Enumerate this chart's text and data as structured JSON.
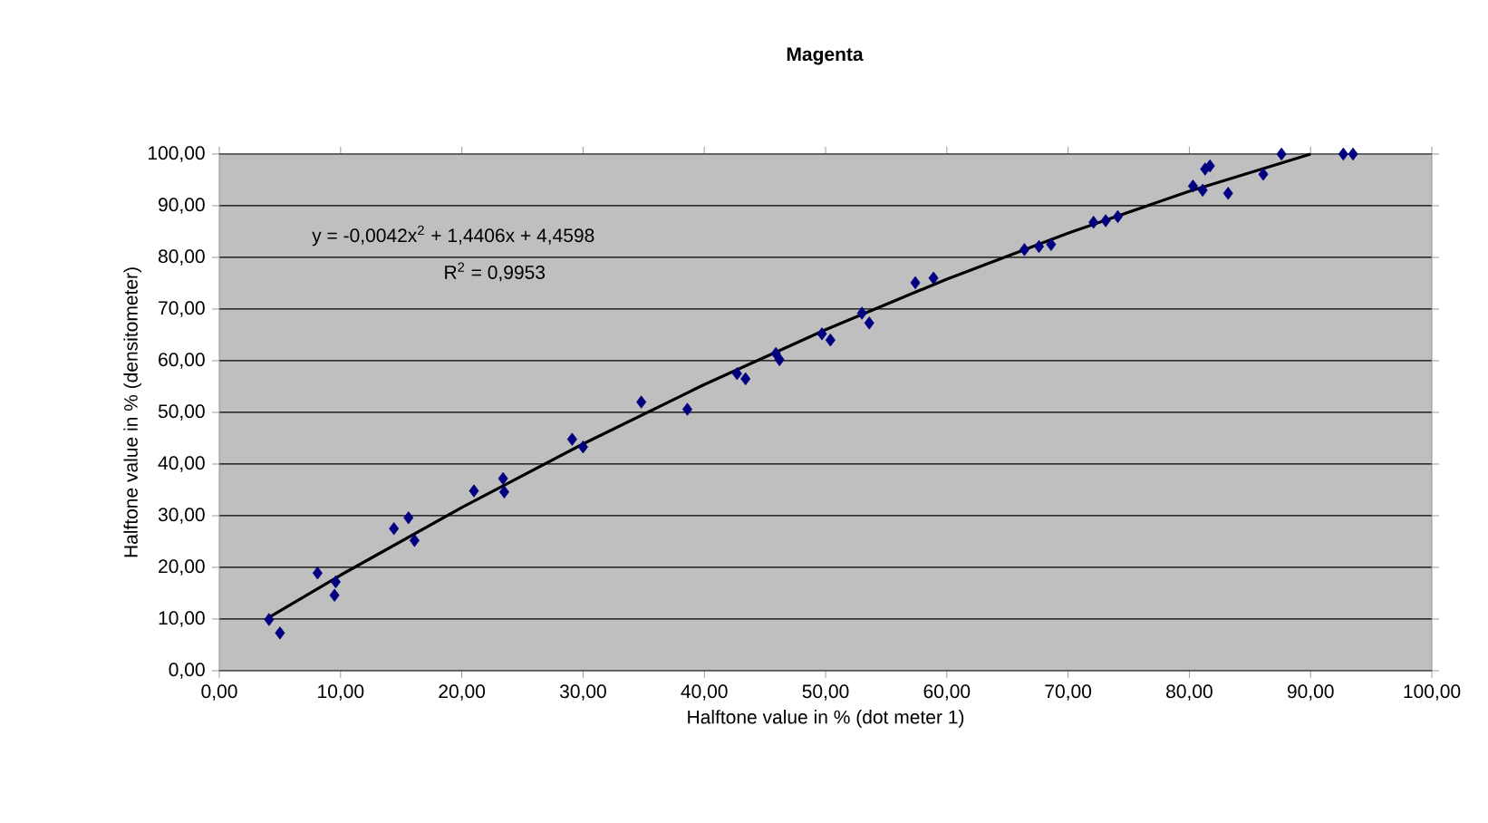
{
  "chart_data": {
    "type": "scatter",
    "title": "Magenta",
    "xlabel": "Halftone value in % (dot meter 1)",
    "ylabel": "Halftone value in % (densitometer)",
    "xlim": [
      0,
      100
    ],
    "ylim": [
      0,
      100
    ],
    "xticks": [
      {
        "value": 0,
        "label": "0,00"
      },
      {
        "value": 10,
        "label": "10,00"
      },
      {
        "value": 20,
        "label": "20,00"
      },
      {
        "value": 30,
        "label": "30,00"
      },
      {
        "value": 40,
        "label": "40,00"
      },
      {
        "value": 50,
        "label": "50,00"
      },
      {
        "value": 60,
        "label": "60,00"
      },
      {
        "value": 70,
        "label": "70,00"
      },
      {
        "value": 80,
        "label": "80,00"
      },
      {
        "value": 90,
        "label": "90,00"
      },
      {
        "value": 100,
        "label": "100,00"
      }
    ],
    "yticks": [
      {
        "value": 0,
        "label": "0,00"
      },
      {
        "value": 10,
        "label": "10,00"
      },
      {
        "value": 20,
        "label": "20,00"
      },
      {
        "value": 30,
        "label": "30,00"
      },
      {
        "value": 40,
        "label": "40,00"
      },
      {
        "value": 50,
        "label": "50,00"
      },
      {
        "value": 60,
        "label": "60,00"
      },
      {
        "value": 70,
        "label": "70,00"
      },
      {
        "value": 80,
        "label": "80,00"
      },
      {
        "value": 90,
        "label": "90,00"
      },
      {
        "value": 100,
        "label": "100,00"
      }
    ],
    "grid": "y",
    "marker": "diamond",
    "annotations": [
      "y = -0,0042x$^{2}$ + 1,4406x + 4,4598",
      "R$^{2}$ = 0,9953"
    ],
    "series": [
      {
        "color": "#000080",
        "x": [
          4.1,
          5.0,
          8.1,
          9.6,
          9.5,
          14.4,
          15.6,
          16.1,
          21.0,
          23.4,
          23.5,
          29.1,
          30.0,
          34.8,
          38.6,
          42.7,
          43.4,
          45.9,
          46.2,
          49.7,
          50.4,
          53.0,
          53.6,
          57.4,
          58.9,
          66.4,
          67.6,
          68.6,
          72.1,
          73.1,
          74.1,
          80.3,
          81.3,
          81.1,
          81.7,
          83.2,
          86.1,
          87.6,
          92.7,
          93.5
        ],
        "values": [
          9.9,
          7.3,
          18.9,
          17.2,
          14.6,
          27.5,
          29.6,
          25.2,
          34.8,
          37.2,
          34.6,
          44.8,
          43.3,
          52.0,
          50.6,
          57.5,
          56.5,
          61.4,
          60.2,
          65.2,
          64.0,
          69.2,
          67.3,
          75.1,
          76.0,
          81.5,
          82.1,
          82.5,
          86.8,
          87.1,
          87.9,
          93.8,
          97.1,
          93.0,
          97.7,
          92.4,
          96.1,
          100,
          100,
          100
        ]
      },
      {
        "type": "line",
        "color": "#000000",
        "marker": "none",
        "x": [
          4,
          10,
          20,
          30,
          40,
          50,
          60,
          70,
          80,
          90
        ],
        "values": [
          10.2,
          18.5,
          31.6,
          43.9,
          55.4,
          66.0,
          75.8,
          84.7,
          92.8,
          100
        ]
      }
    ]
  }
}
